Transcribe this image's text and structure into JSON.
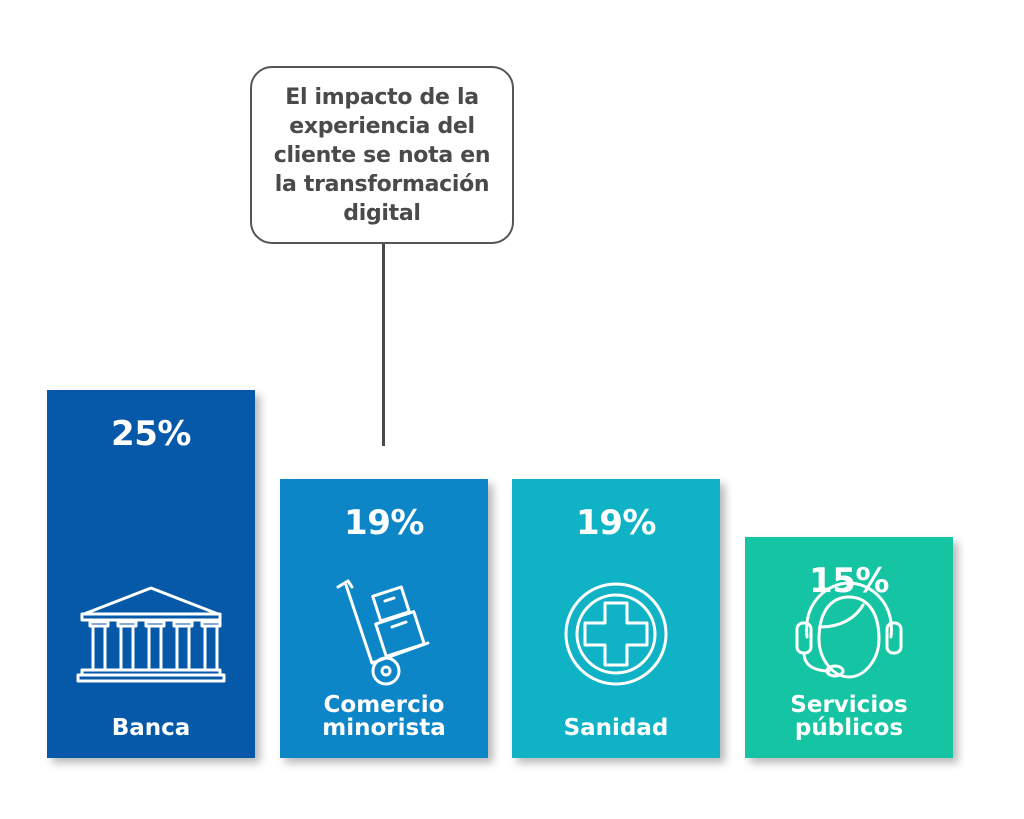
{
  "callout": {
    "text": "El impacto de la experiencia del cliente se nota en la transformación digital"
  },
  "chart_data": {
    "type": "bar",
    "title": "",
    "unit": "%",
    "categories": [
      "Banca",
      "Comercio minorista",
      "Sanidad",
      "Servicios públicos"
    ],
    "values": [
      25,
      19,
      19,
      15
    ],
    "value_labels": [
      "25%",
      "19%",
      "19%",
      "15%"
    ],
    "label_lines": [
      [
        "Banca"
      ],
      [
        "Comercio",
        "minorista"
      ],
      [
        "Sanidad"
      ],
      [
        "Servicios",
        "públicos"
      ]
    ],
    "colors": [
      "#0559a8",
      "#0c86c6",
      "#10b3c6",
      "#14c4a2"
    ],
    "icons": [
      "bank-icon",
      "hand-truck-icon",
      "medical-cross-icon",
      "headset-agent-icon"
    ],
    "highlighted_category": "Comercio minorista",
    "legend": "none",
    "grid": false
  }
}
